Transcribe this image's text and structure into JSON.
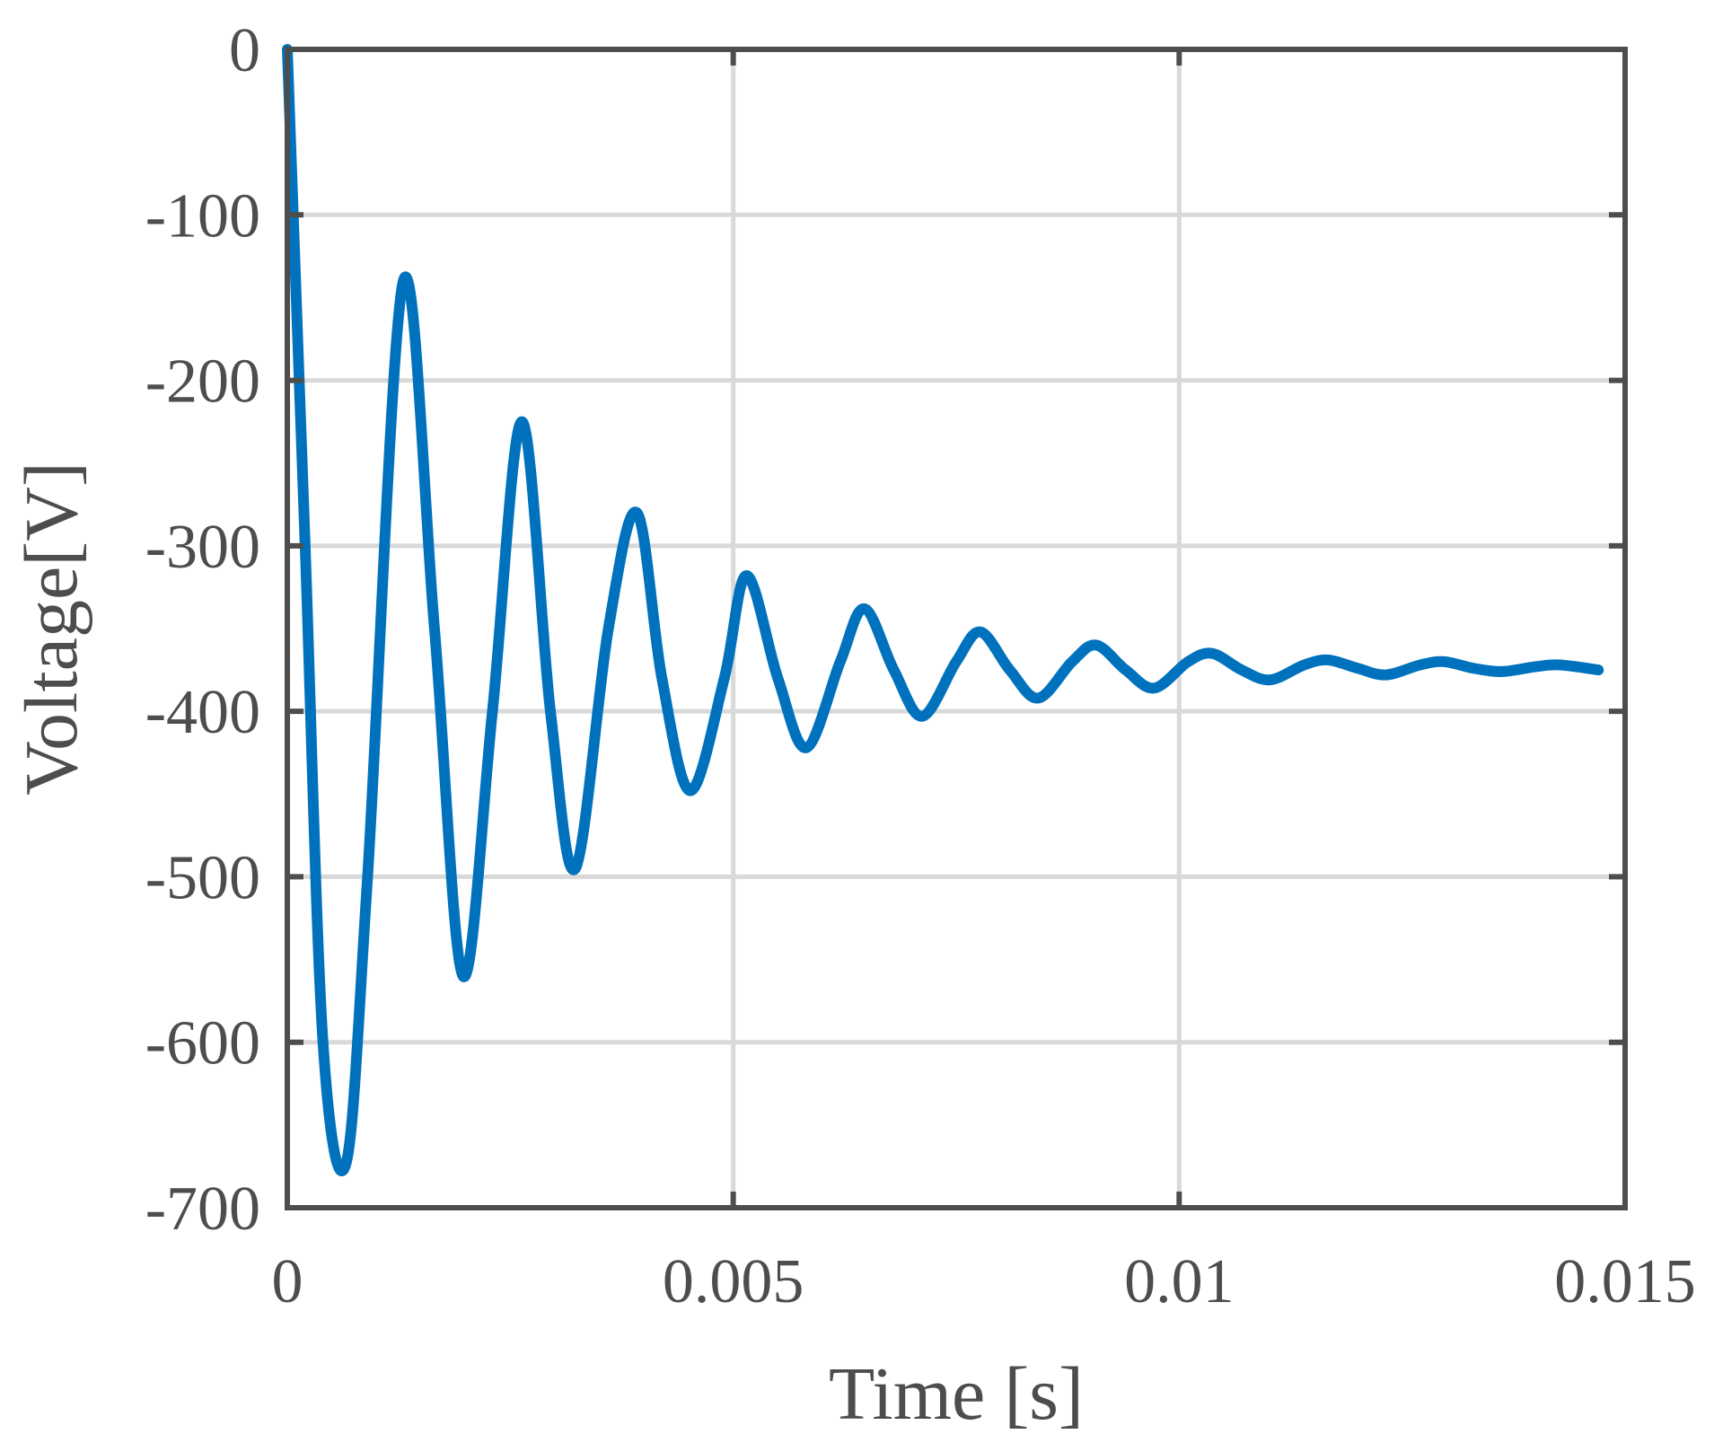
{
  "chart_data": {
    "type": "line",
    "title": "",
    "xlabel": "Time [s]",
    "ylabel": "Voltage[V]",
    "xlim": [
      0,
      0.015
    ],
    "ylim": [
      -700,
      0
    ],
    "xticks": [
      0,
      0.005,
      0.01,
      0.015
    ],
    "xtick_labels": [
      "0",
      "0.005",
      "0.01",
      "0.015"
    ],
    "yticks": [
      0,
      -100,
      -200,
      -300,
      -400,
      -500,
      -600,
      -700
    ],
    "ytick_labels": [
      "0",
      "-100",
      "-200",
      "-300",
      "-400",
      "-500",
      "-600",
      "-700"
    ],
    "grid": true,
    "series": [
      {
        "color": "#0072BD",
        "x": [
          0,
          0.0002,
          0.0004,
          0.00066,
          0.0009,
          0.0013,
          0.00165,
          0.00197,
          0.0023,
          0.00263,
          0.00295,
          0.00323,
          0.0036,
          0.00392,
          0.0042,
          0.00452,
          0.0049,
          0.00515,
          0.0055,
          0.00582,
          0.0062,
          0.00647,
          0.0068,
          0.00712,
          0.0075,
          0.00777,
          0.0081,
          0.00842,
          0.0088,
          0.00907,
          0.0094,
          0.00972,
          0.0101,
          0.01037,
          0.0107,
          0.01102,
          0.0114,
          0.01167,
          0.012,
          0.01232,
          0.0127,
          0.01297,
          0.0133,
          0.01362,
          0.014,
          0.01427,
          0.0147
        ],
        "y": [
          0,
          -300,
          -600,
          -673,
          -500,
          -140,
          -350,
          -560,
          -400,
          -225,
          -400,
          -495,
          -350,
          -280,
          -380,
          -448,
          -380,
          -318,
          -380,
          -422,
          -370,
          -338,
          -375,
          -403,
          -370,
          -352,
          -375,
          -392,
          -370,
          -360,
          -375,
          -386,
          -370,
          -365,
          -375,
          -381,
          -372,
          -369,
          -374,
          -378,
          -372,
          -370,
          -374,
          -376,
          -373,
          -372,
          -375
        ]
      }
    ]
  }
}
